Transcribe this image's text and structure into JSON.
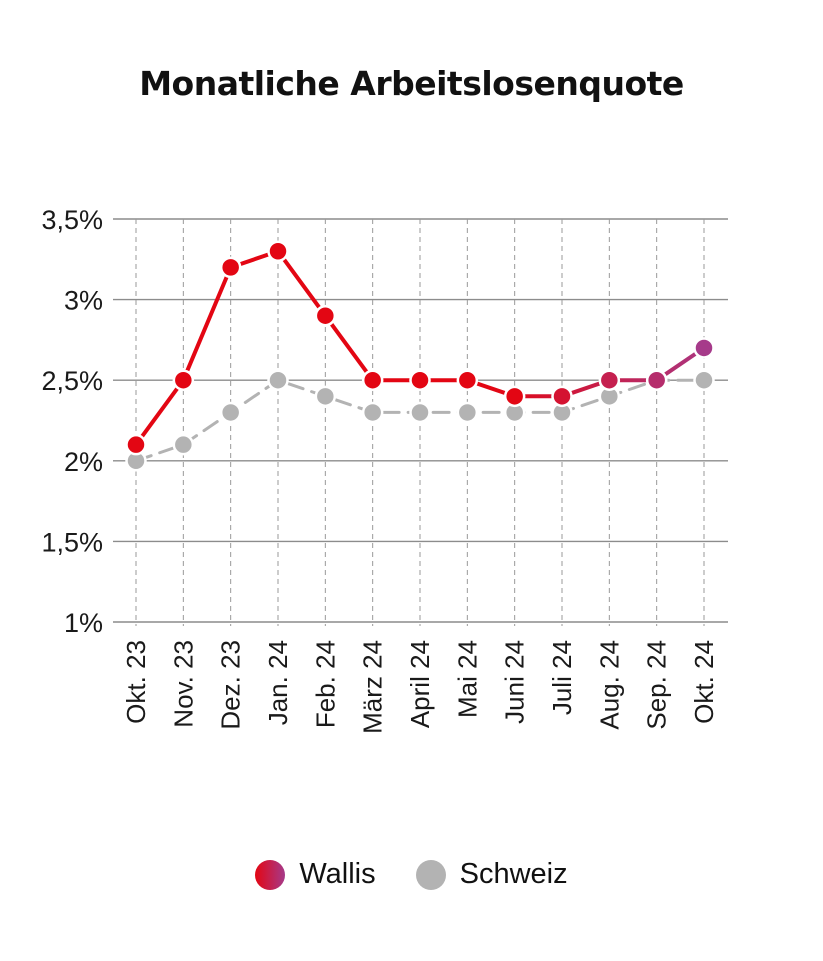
{
  "chart_data": {
    "type": "line",
    "title": "Monatliche Arbeitslosenquote",
    "xlabel": "",
    "ylabel": "",
    "categories": [
      "Okt. 23",
      "Nov. 23",
      "Dez. 23",
      "Jan. 24",
      "Feb. 24",
      "März 24",
      "April 24",
      "Mai 24",
      "Juni 24",
      "Juli 24",
      "Aug. 24",
      "Sep. 24",
      "Okt. 24"
    ],
    "ylim": [
      1,
      3.5
    ],
    "yticks": [
      1,
      1.5,
      2,
      2.5,
      3,
      3.5
    ],
    "ytick_labels": [
      "1%",
      "1,5%",
      "2%",
      "2,5%",
      "3%",
      "3,5%"
    ],
    "grid": true,
    "legend_position": "bottom",
    "series": [
      {
        "name": "Wallis",
        "values": [
          2.1,
          2.5,
          3.2,
          3.3,
          2.9,
          2.5,
          2.5,
          2.5,
          2.4,
          2.4,
          2.5,
          2.5,
          2.7
        ],
        "color_start": "#e30613",
        "color_end": "#a63a8a",
        "line_style": "solid"
      },
      {
        "name": "Schweiz",
        "values": [
          2.0,
          2.1,
          2.3,
          2.5,
          2.4,
          2.3,
          2.3,
          2.3,
          2.3,
          2.3,
          2.4,
          2.5,
          2.5
        ],
        "color": "#b3b3b3",
        "line_style": "dashed"
      }
    ]
  },
  "legend": {
    "items": [
      {
        "label": "Wallis",
        "color": "#e0202e"
      },
      {
        "label": "Schweiz",
        "color": "#b3b3b3"
      }
    ]
  }
}
